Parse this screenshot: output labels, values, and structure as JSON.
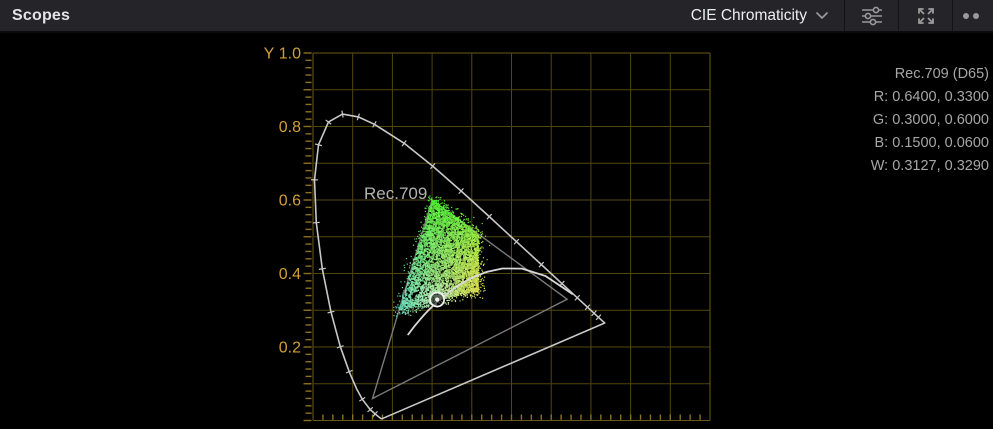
{
  "topbar": {
    "title": "Scopes",
    "scope_type": "CIE Chromaticity"
  },
  "info_panel": {
    "lines": [
      "Rec.709 (D65)",
      "R: 0.6400, 0.3300",
      "G: 0.3000, 0.6000",
      "B: 0.1500, 0.0600",
      "W: 0.3127, 0.3290"
    ]
  },
  "colors": {
    "topbar_bg": "#242429",
    "scope_bg": "#000000",
    "grid": "#52460e",
    "grid_edge": "#6a5a16",
    "tick_gold": "#8d7122",
    "axis_label_gold": "#d0a038",
    "locus_line": "#c8c8c8",
    "triangle_line": "#7a7a7a",
    "blackbody_line": "#d8d8d8",
    "gamut_label": "#b2b2b2",
    "white_point": "#f0f0f0",
    "info_text": "#a6a6a6",
    "icon_gray": "#9a9a9a",
    "cloud_green": "#4CE431",
    "cloud_yellow": "#E0D84E",
    "cloud_teal": "#63D8B8",
    "cloud_pale": "#cfe8da"
  },
  "chart_data": {
    "type": "scatter",
    "title": "CIE Chromaticity",
    "ylabel": "Y",
    "x_range": [
      0,
      1.0
    ],
    "y_range": [
      0,
      1.0
    ],
    "grid_step": 0.1,
    "grid_on": true,
    "y_ticks": {
      "values": [
        1.0,
        0.8,
        0.6,
        0.4,
        0.2
      ],
      "labels": [
        "1.0",
        "0.8",
        "0.6",
        "0.4",
        "0.2"
      ]
    },
    "gamut_label": "Rec.709",
    "rec709_triangle": {
      "R": [
        0.64,
        0.33
      ],
      "G": [
        0.3,
        0.6
      ],
      "B": [
        0.15,
        0.06
      ]
    },
    "white_point": [
      0.3127,
      0.329
    ],
    "spectral_locus": [
      [
        380,
        0.1741,
        0.005
      ],
      [
        420,
        0.1714,
        0.0051
      ],
      [
        440,
        0.1644,
        0.0109
      ],
      [
        450,
        0.1566,
        0.0177
      ],
      [
        460,
        0.144,
        0.0297
      ],
      [
        470,
        0.1241,
        0.0578
      ],
      [
        475,
        0.1096,
        0.0868
      ],
      [
        480,
        0.0913,
        0.1327
      ],
      [
        485,
        0.0687,
        0.2007
      ],
      [
        490,
        0.0454,
        0.295
      ],
      [
        495,
        0.0235,
        0.4127
      ],
      [
        500,
        0.0082,
        0.5384
      ],
      [
        505,
        0.0039,
        0.6548
      ],
      [
        510,
        0.0139,
        0.7502
      ],
      [
        515,
        0.0389,
        0.812
      ],
      [
        520,
        0.0743,
        0.8338
      ],
      [
        525,
        0.1142,
        0.8262
      ],
      [
        530,
        0.1547,
        0.8059
      ],
      [
        540,
        0.2296,
        0.7543
      ],
      [
        550,
        0.3016,
        0.6923
      ],
      [
        560,
        0.3731,
        0.6245
      ],
      [
        570,
        0.4441,
        0.5547
      ],
      [
        580,
        0.5125,
        0.4866
      ],
      [
        590,
        0.5752,
        0.4242
      ],
      [
        600,
        0.627,
        0.3725
      ],
      [
        610,
        0.6658,
        0.334
      ],
      [
        620,
        0.6915,
        0.3083
      ],
      [
        630,
        0.7079,
        0.292
      ],
      [
        640,
        0.719,
        0.2809
      ],
      [
        650,
        0.726,
        0.274
      ],
      [
        660,
        0.73,
        0.27
      ],
      [
        680,
        0.7334,
        0.2666
      ],
      [
        700,
        0.7347,
        0.2653
      ]
    ],
    "wavelength_tick_marks": [
      450,
      460,
      470,
      480,
      485,
      490,
      495,
      500,
      505,
      510,
      515,
      520,
      525,
      530,
      540,
      550,
      560,
      570,
      580,
      590,
      600,
      610,
      620,
      630,
      640
    ],
    "blackbody_curve": [
      [
        0.2399,
        0.2342
      ],
      [
        0.2501,
        0.2489
      ],
      [
        0.2565,
        0.2577
      ],
      [
        0.2637,
        0.2673
      ],
      [
        0.2807,
        0.2884
      ],
      [
        0.2952,
        0.3048
      ],
      [
        0.3135,
        0.3237
      ],
      [
        0.3451,
        0.3516
      ],
      [
        0.3805,
        0.3768
      ],
      [
        0.4053,
        0.3907
      ],
      [
        0.4369,
        0.4041
      ],
      [
        0.477,
        0.4137
      ],
      [
        0.5267,
        0.4133
      ],
      [
        0.5857,
        0.3931
      ],
      [
        0.6528,
        0.3444
      ]
    ],
    "signal_cloud": {
      "polygon": [
        [
          0.302,
          0.601
        ],
        [
          0.417,
          0.507
        ],
        [
          0.417,
          0.352
        ],
        [
          0.313,
          0.329
        ],
        [
          0.218,
          0.3
        ]
      ],
      "density": 5200,
      "edge_speckles": 900
    }
  }
}
